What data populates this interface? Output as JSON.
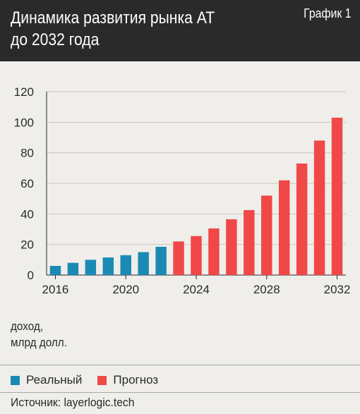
{
  "header": {
    "title_line1": "Динамика развития рынка АТ",
    "title_line2": "до 2032 года",
    "chart_label": "График 1"
  },
  "unit_label_line1": "доход,",
  "unit_label_line2": "млрд долл.",
  "legend": {
    "items": [
      {
        "label": "Реальный",
        "color": "#1a8ab5"
      },
      {
        "label": "Прогноз",
        "color": "#f04848"
      }
    ]
  },
  "source": "Источник: layerlogic.tech",
  "chart_data": {
    "type": "bar",
    "x": [
      2016,
      2017,
      2018,
      2019,
      2020,
      2021,
      2022,
      2023,
      2024,
      2025,
      2026,
      2027,
      2028,
      2029,
      2030,
      2031,
      2032
    ],
    "series": [
      {
        "name": "Реальный",
        "color": "#1a8ab5",
        "x": [
          2016,
          2017,
          2018,
          2019,
          2020,
          2021,
          2022
        ],
        "values": [
          6,
          8,
          10,
          11.5,
          13,
          15,
          18.5
        ]
      },
      {
        "name": "Прогноз",
        "color": "#f04848",
        "x": [
          2023,
          2024,
          2025,
          2026,
          2027,
          2028,
          2029,
          2030,
          2031,
          2032
        ],
        "values": [
          22,
          25.5,
          30.5,
          36.5,
          42.5,
          52,
          62,
          73,
          88,
          103
        ]
      }
    ],
    "xticks": [
      2016,
      2020,
      2024,
      2028,
      2032
    ],
    "yticks": [
      0,
      20,
      40,
      60,
      80,
      100,
      120
    ],
    "ylim": [
      0,
      120
    ],
    "grid": true
  }
}
